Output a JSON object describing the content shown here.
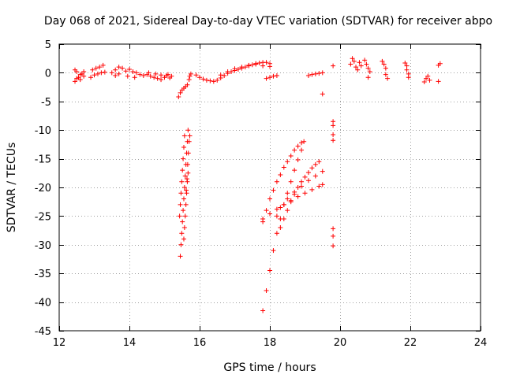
{
  "chart_data": {
    "type": "scatter",
    "title": "Day 068 of 2021, Sidereal Day-to-day VTEC variation (SDTVAR) for receiver abpo",
    "xlabel": "GPS time / hours",
    "ylabel": "SDTVAR / TECUs",
    "xlim": [
      12,
      24
    ],
    "ylim": [
      -45,
      5
    ],
    "xticks": [
      12,
      14,
      16,
      18,
      20,
      22,
      24
    ],
    "yticks": [
      5,
      0,
      -5,
      -10,
      -15,
      -20,
      -25,
      -30,
      -35,
      -40,
      -45
    ],
    "marker": "+",
    "color": "#ff0000",
    "grid": true,
    "series": [
      {
        "name": "cluster-1",
        "points": [
          [
            12.45,
            -1.5
          ],
          [
            12.45,
            0.5
          ],
          [
            12.5,
            -1.0
          ],
          [
            12.5,
            0.2
          ],
          [
            12.55,
            -0.8
          ],
          [
            12.6,
            -0.3
          ],
          [
            12.6,
            -1.2
          ],
          [
            12.65,
            -0.2
          ],
          [
            12.7,
            0.2
          ],
          [
            12.7,
            -0.6
          ]
        ]
      },
      {
        "name": "cluster-2",
        "points": [
          [
            12.9,
            -0.8
          ],
          [
            13.0,
            -0.4
          ],
          [
            13.1,
            -0.2
          ],
          [
            13.2,
            0.0
          ],
          [
            13.3,
            0.1
          ],
          [
            12.95,
            0.5
          ],
          [
            13.05,
            0.8
          ],
          [
            13.15,
            1.0
          ],
          [
            13.25,
            1.3
          ]
        ]
      },
      {
        "name": "cluster-3",
        "points": [
          [
            13.5,
            0.0
          ],
          [
            13.6,
            0.5
          ],
          [
            13.7,
            1.0
          ],
          [
            13.6,
            -0.5
          ],
          [
            13.7,
            -0.2
          ],
          [
            13.8,
            0.8
          ],
          [
            13.9,
            0.3
          ],
          [
            14.0,
            0.6
          ],
          [
            14.1,
            0.2
          ],
          [
            14.2,
            0.0
          ],
          [
            14.3,
            -0.3
          ],
          [
            14.4,
            -0.5
          ],
          [
            13.95,
            -0.6
          ],
          [
            14.15,
            -0.8
          ]
        ]
      },
      {
        "name": "cluster-4",
        "points": [
          [
            14.5,
            -0.3
          ],
          [
            14.6,
            -0.6
          ],
          [
            14.7,
            -0.8
          ],
          [
            14.8,
            -1.0
          ],
          [
            14.9,
            -1.2
          ],
          [
            14.55,
            0.0
          ],
          [
            14.75,
            -0.2
          ],
          [
            14.9,
            -0.4
          ]
        ]
      },
      {
        "name": "cluster-5",
        "points": [
          [
            15.0,
            -0.8
          ],
          [
            15.05,
            -0.5
          ],
          [
            15.1,
            -0.3
          ],
          [
            15.15,
            -0.9
          ],
          [
            15.2,
            -0.6
          ]
        ]
      },
      {
        "name": "cluster-6",
        "points": [
          [
            15.4,
            -4.2
          ],
          [
            15.45,
            -3.5
          ],
          [
            15.5,
            -3.0
          ],
          [
            15.55,
            -2.7
          ],
          [
            15.6,
            -2.4
          ],
          [
            15.65,
            -2.1
          ]
        ]
      },
      {
        "name": "cluster-7",
        "points": [
          [
            15.7,
            -1.2
          ],
          [
            15.72,
            -0.6
          ],
          [
            15.75,
            -0.2
          ]
        ]
      },
      {
        "name": "cluster-8",
        "points": [
          [
            15.9,
            -0.4
          ],
          [
            16.0,
            -0.8
          ],
          [
            16.1,
            -1.1
          ],
          [
            16.2,
            -1.3
          ],
          [
            16.3,
            -1.4
          ],
          [
            16.4,
            -1.5
          ],
          [
            16.5,
            -1.3
          ],
          [
            16.6,
            -0.9
          ],
          [
            16.7,
            -0.5
          ],
          [
            16.8,
            -0.1
          ],
          [
            16.9,
            0.2
          ],
          [
            17.0,
            0.4
          ],
          [
            17.1,
            0.6
          ],
          [
            17.2,
            0.8
          ],
          [
            17.3,
            1.0
          ],
          [
            17.4,
            1.2
          ],
          [
            17.5,
            1.4
          ],
          [
            17.6,
            1.6
          ],
          [
            17.7,
            1.7
          ],
          [
            17.8,
            1.8
          ],
          [
            17.9,
            1.8
          ],
          [
            18.0,
            1.6
          ],
          [
            16.6,
            -0.4
          ],
          [
            16.8,
            0.2
          ],
          [
            17.0,
            0.7
          ],
          [
            17.2,
            1.0
          ],
          [
            17.4,
            1.3
          ],
          [
            17.6,
            1.5
          ],
          [
            17.8,
            1.2
          ],
          [
            18.0,
            1.1
          ]
        ]
      },
      {
        "name": "cluster-9",
        "points": [
          [
            17.9,
            -1.0
          ],
          [
            18.0,
            -0.8
          ],
          [
            18.1,
            -0.6
          ],
          [
            18.2,
            -0.5
          ]
        ]
      },
      {
        "name": "cluster-10",
        "points": [
          [
            19.1,
            -0.5
          ],
          [
            19.2,
            -0.3
          ],
          [
            19.3,
            -0.2
          ],
          [
            19.4,
            -0.1
          ],
          [
            19.5,
            0.0
          ]
        ]
      },
      {
        "name": "cluster-11",
        "points": [
          [
            19.5,
            -3.7
          ]
        ]
      },
      {
        "name": "cluster-12",
        "points": [
          [
            19.8,
            1.2
          ]
        ]
      },
      {
        "name": "cluster-13",
        "points": [
          [
            20.3,
            1.5
          ],
          [
            20.35,
            2.5
          ],
          [
            20.4,
            2.0
          ],
          [
            20.45,
            1.0
          ],
          [
            20.5,
            0.5
          ],
          [
            20.55,
            1.8
          ],
          [
            20.6,
            1.2
          ]
        ]
      },
      {
        "name": "cluster-14",
        "points": [
          [
            20.7,
            2.2
          ],
          [
            20.75,
            1.5
          ],
          [
            20.8,
            0.8
          ],
          [
            20.85,
            0.2
          ],
          [
            20.8,
            -0.8
          ]
        ]
      },
      {
        "name": "cluster-15",
        "points": [
          [
            21.2,
            2.0
          ],
          [
            21.25,
            1.5
          ],
          [
            21.3,
            0.8
          ],
          [
            21.3,
            -0.3
          ],
          [
            21.35,
            -1.0
          ]
        ]
      },
      {
        "name": "cluster-16",
        "points": [
          [
            21.85,
            1.7
          ],
          [
            21.9,
            1.2
          ],
          [
            21.9,
            0.5
          ],
          [
            21.95,
            -0.2
          ],
          [
            21.95,
            -0.8
          ]
        ]
      },
      {
        "name": "cluster-17",
        "points": [
          [
            22.4,
            -1.6
          ],
          [
            22.45,
            -1.0
          ],
          [
            22.5,
            -0.6
          ],
          [
            22.55,
            -1.3
          ]
        ]
      },
      {
        "name": "cluster-18",
        "points": [
          [
            22.8,
            1.3
          ],
          [
            22.85,
            1.6
          ],
          [
            22.8,
            -1.5
          ]
        ]
      },
      {
        "name": "descent-1",
        "points": [
          [
            15.45,
            -32.0
          ],
          [
            15.47,
            -30.0
          ],
          [
            15.49,
            -28.0
          ],
          [
            15.51,
            -26.0
          ],
          [
            15.53,
            -24.0
          ],
          [
            15.55,
            -22.0
          ],
          [
            15.57,
            -20.0
          ],
          [
            15.59,
            -18.0
          ],
          [
            15.61,
            -16.0
          ],
          [
            15.63,
            -14.0
          ],
          [
            15.65,
            -12.0
          ],
          [
            15.67,
            -10.0
          ],
          [
            15.43,
            -25.0
          ],
          [
            15.45,
            -23.0
          ],
          [
            15.47,
            -21.0
          ],
          [
            15.49,
            -19.0
          ],
          [
            15.51,
            -17.0
          ],
          [
            15.53,
            -15.0
          ],
          [
            15.55,
            -13.0
          ],
          [
            15.57,
            -11.0
          ]
        ]
      },
      {
        "name": "descent-2",
        "points": [
          [
            15.55,
            -29.0
          ],
          [
            15.57,
            -27.0
          ],
          [
            15.59,
            -25.0
          ],
          [
            15.61,
            -23.0
          ],
          [
            15.63,
            -21.0
          ],
          [
            15.65,
            -19.0
          ],
          [
            15.67,
            -17.5
          ],
          [
            15.62,
            -20.5
          ],
          [
            15.64,
            -18.5
          ],
          [
            15.66,
            -16.0
          ],
          [
            15.68,
            -14.0
          ],
          [
            15.7,
            -12.0
          ],
          [
            15.72,
            -11.0
          ]
        ]
      },
      {
        "name": "ramp-1",
        "points": [
          [
            17.8,
            -41.5
          ],
          [
            17.9,
            -38.0
          ],
          [
            18.0,
            -34.5
          ],
          [
            18.1,
            -31.0
          ],
          [
            18.2,
            -28.0
          ],
          [
            18.3,
            -25.5
          ],
          [
            18.4,
            -23.0
          ],
          [
            18.5,
            -21.0
          ],
          [
            18.6,
            -19.0
          ],
          [
            18.7,
            -17.0
          ],
          [
            18.8,
            -15.2
          ],
          [
            18.9,
            -13.5
          ],
          [
            18.97,
            -12.0
          ]
        ]
      },
      {
        "name": "ramp-2",
        "points": [
          [
            17.8,
            -26.0
          ],
          [
            17.9,
            -24.0
          ],
          [
            18.0,
            -22.0
          ],
          [
            18.1,
            -20.5
          ],
          [
            18.2,
            -19.0
          ],
          [
            18.3,
            -17.8
          ],
          [
            18.4,
            -16.5
          ],
          [
            18.5,
            -15.5
          ],
          [
            18.6,
            -14.5
          ],
          [
            18.7,
            -13.5
          ],
          [
            18.8,
            -12.8
          ],
          [
            18.9,
            -12.2
          ]
        ]
      },
      {
        "name": "ramp-3",
        "points": [
          [
            17.8,
            -25.5
          ],
          [
            18.0,
            -24.6
          ],
          [
            18.2,
            -23.8
          ],
          [
            18.4,
            -23.0
          ],
          [
            18.6,
            -22.3
          ],
          [
            18.8,
            -21.6
          ],
          [
            19.0,
            -21.0
          ],
          [
            19.2,
            -20.4
          ],
          [
            19.4,
            -19.8
          ],
          [
            19.5,
            -19.5
          ]
        ]
      },
      {
        "name": "ramp-4",
        "points": [
          [
            18.3,
            -27.0
          ],
          [
            18.4,
            -25.5
          ],
          [
            18.5,
            -24.0
          ],
          [
            18.6,
            -22.5
          ],
          [
            18.7,
            -21.2
          ],
          [
            18.8,
            -20.0
          ],
          [
            18.9,
            -19.0
          ],
          [
            19.0,
            -18.2
          ],
          [
            19.1,
            -17.4
          ],
          [
            19.2,
            -16.6
          ],
          [
            19.3,
            -16.0
          ],
          [
            19.4,
            -15.5
          ],
          [
            19.5,
            -17.2
          ],
          [
            19.3,
            -18.0
          ],
          [
            19.1,
            -18.8
          ],
          [
            18.9,
            -19.8
          ],
          [
            18.7,
            -20.8
          ],
          [
            18.5,
            -22.0
          ],
          [
            18.3,
            -23.5
          ],
          [
            18.2,
            -25.0
          ]
        ]
      },
      {
        "name": "isolated-1",
        "points": [
          [
            19.8,
            -8.5
          ],
          [
            19.8,
            -9.2
          ],
          [
            19.8,
            -10.8
          ],
          [
            19.8,
            -11.8
          ],
          [
            19.8,
            -27.2
          ],
          [
            19.8,
            -28.5
          ],
          [
            19.8,
            -30.2
          ]
        ]
      }
    ]
  }
}
